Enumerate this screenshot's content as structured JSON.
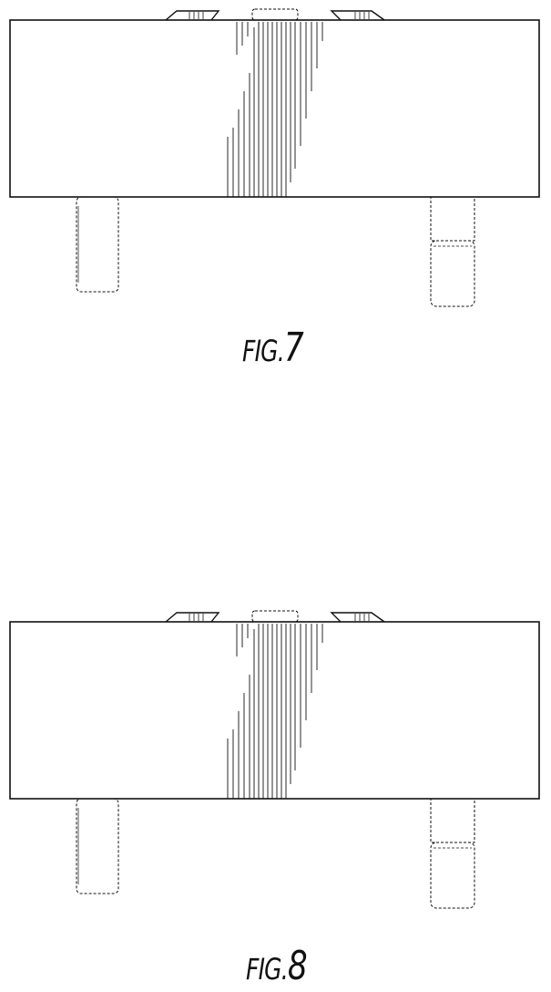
{
  "figures": [
    {
      "id": "fig7",
      "caption_prefix": "FIG.",
      "caption_number": "7"
    },
    {
      "id": "fig8",
      "caption_prefix": "FIG.",
      "caption_number": "8"
    }
  ],
  "colors": {
    "line": "#111111",
    "background": "#ffffff"
  }
}
